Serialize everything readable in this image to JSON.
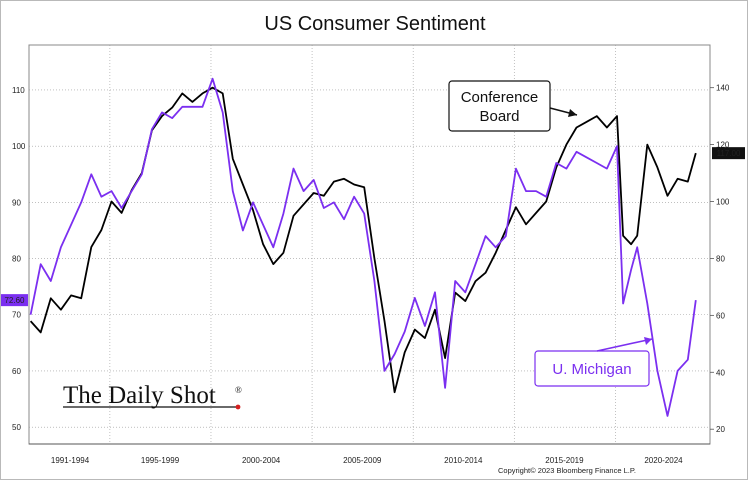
{
  "chart_data": {
    "type": "line",
    "title": "US Consumer Sentiment",
    "x_categories": [
      "1991-1994",
      "1995-1999",
      "2000-2004",
      "2005-2009",
      "2010-2014",
      "2015-2019",
      "2020-2024"
    ],
    "left_axis": {
      "ticks": [
        50,
        60,
        70,
        80,
        90,
        100,
        110
      ],
      "ylim": [
        47,
        118
      ],
      "last_value_label": "72.60"
    },
    "right_axis": {
      "ticks": [
        20,
        40,
        60,
        80,
        100,
        120,
        140
      ],
      "ylim": [
        14.8,
        155
      ],
      "last_value_label": "117.00"
    },
    "series": [
      {
        "name": "Conference Board",
        "axis": "right",
        "color": "#000000",
        "x": [
          1991.0,
          1991.5,
          1992.0,
          1992.5,
          1993.0,
          1993.5,
          1994.0,
          1994.5,
          1995.0,
          1995.5,
          1996.0,
          1996.5,
          1997.0,
          1997.5,
          1998.0,
          1998.5,
          1999.0,
          1999.5,
          2000.0,
          2000.5,
          2001.0,
          2001.5,
          2002.0,
          2002.5,
          2003.0,
          2003.5,
          2004.0,
          2004.5,
          2005.0,
          2005.5,
          2006.0,
          2006.5,
          2007.0,
          2007.5,
          2008.0,
          2008.5,
          2009.0,
          2009.5,
          2010.0,
          2010.5,
          2011.0,
          2011.5,
          2012.0,
          2012.5,
          2013.0,
          2013.5,
          2014.0,
          2014.5,
          2015.0,
          2015.5,
          2016.0,
          2016.5,
          2017.0,
          2017.5,
          2018.0,
          2018.5,
          2019.0,
          2019.5,
          2020.0,
          2020.3,
          2020.7,
          2021.0,
          2021.5,
          2022.0,
          2022.5,
          2023.0,
          2023.5,
          2023.9
        ],
        "values": [
          58,
          54,
          66,
          62,
          67,
          66,
          84,
          90,
          100,
          96,
          104,
          110,
          125,
          130,
          133,
          138,
          135,
          138,
          140,
          138,
          115,
          106,
          97,
          85,
          78,
          82,
          95,
          99,
          103,
          102,
          107,
          108,
          106,
          105,
          80,
          58,
          33,
          47,
          55,
          52,
          62,
          45,
          68,
          65,
          72,
          75,
          82,
          90,
          98,
          92,
          96,
          100,
          112,
          120,
          126,
          128,
          130,
          126,
          130,
          88,
          85,
          88,
          120,
          112,
          102,
          108,
          107,
          117
        ]
      },
      {
        "name": "U. Michigan",
        "axis": "left",
        "color": "#7b2ff0",
        "x": [
          1991.0,
          1991.5,
          1992.0,
          1992.5,
          1993.0,
          1993.5,
          1994.0,
          1994.5,
          1995.0,
          1995.5,
          1996.0,
          1996.5,
          1997.0,
          1997.5,
          1998.0,
          1998.5,
          1999.0,
          1999.5,
          2000.0,
          2000.5,
          2001.0,
          2001.5,
          2002.0,
          2002.5,
          2003.0,
          2003.5,
          2004.0,
          2004.5,
          2005.0,
          2005.5,
          2006.0,
          2006.5,
          2007.0,
          2007.5,
          2008.0,
          2008.5,
          2009.0,
          2009.5,
          2010.0,
          2010.5,
          2011.0,
          2011.5,
          2012.0,
          2012.5,
          2013.0,
          2013.5,
          2014.0,
          2014.5,
          2015.0,
          2015.5,
          2016.0,
          2016.5,
          2017.0,
          2017.5,
          2018.0,
          2018.5,
          2019.0,
          2019.5,
          2020.0,
          2020.3,
          2020.7,
          2021.0,
          2021.5,
          2022.0,
          2022.5,
          2023.0,
          2023.5,
          2023.9
        ],
        "values": [
          70,
          79,
          76,
          82,
          86,
          90,
          95,
          91,
          92,
          89,
          92,
          95,
          103,
          106,
          105,
          107,
          107,
          107,
          112,
          106,
          92,
          85,
          90,
          86,
          82,
          88,
          96,
          92,
          94,
          89,
          90,
          87,
          91,
          88,
          76,
          60,
          63,
          67,
          73,
          68,
          74,
          57,
          76,
          74,
          79,
          84,
          82,
          84,
          96,
          92,
          92,
          91,
          97,
          96,
          99,
          98,
          97,
          96,
          100,
          72,
          78,
          82,
          72,
          60,
          52,
          60,
          62,
          72.6
        ]
      }
    ],
    "annotations": {
      "conference_board_label": "Conference\nBoard",
      "michigan_label": "U. Michigan"
    },
    "source": "Copyright© 2023 Bloomberg Finance L.P.",
    "brand": "The Daily Shot",
    "brand_mark": "®"
  }
}
